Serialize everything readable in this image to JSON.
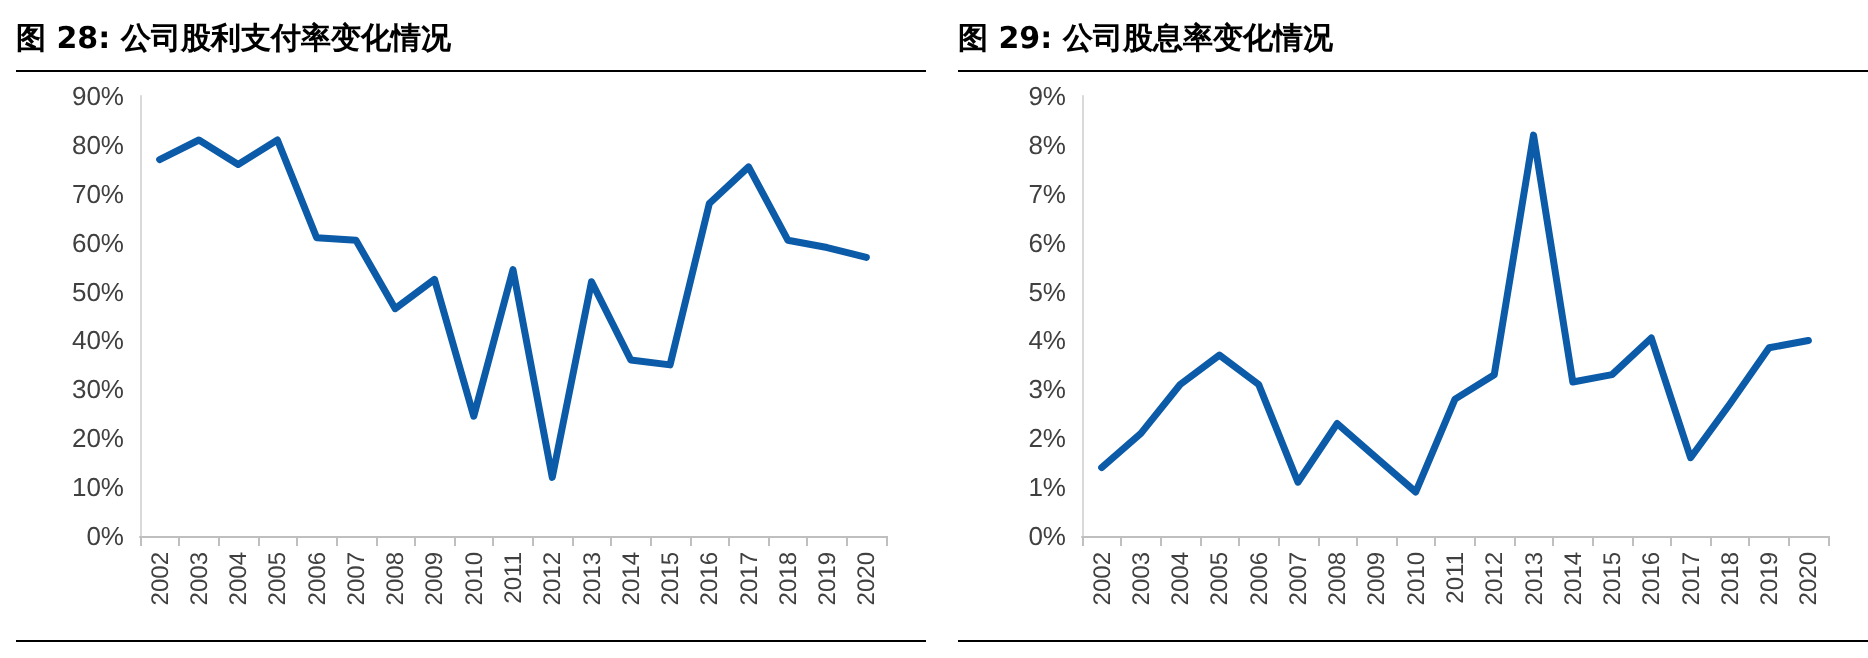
{
  "chart_data": [
    {
      "type": "line",
      "title": "图 28:  公司股利支付率变化情况",
      "categories": [
        "2002",
        "2003",
        "2004",
        "2005",
        "2006",
        "2007",
        "2008",
        "2009",
        "2010",
        "2011",
        "2012",
        "2013",
        "2014",
        "2015",
        "2016",
        "2017",
        "2018",
        "2019",
        "2020"
      ],
      "series": [
        {
          "color": "#0b5ba8",
          "values": [
            77,
            81,
            76,
            81,
            61,
            60.5,
            46.5,
            52.5,
            24.5,
            54.5,
            12,
            52,
            36,
            35,
            68,
            75.5,
            60.5,
            59,
            57
          ]
        }
      ],
      "ylim": [
        0,
        90
      ],
      "yticks": [
        {
          "value": 0,
          "label": "0%"
        },
        {
          "value": 10,
          "label": "10%"
        },
        {
          "value": 20,
          "label": "20%"
        },
        {
          "value": 30,
          "label": "30%"
        },
        {
          "value": 40,
          "label": "40%"
        },
        {
          "value": 50,
          "label": "50%"
        },
        {
          "value": 60,
          "label": "60%"
        },
        {
          "value": 70,
          "label": "70%"
        },
        {
          "value": 80,
          "label": "80%"
        },
        {
          "value": 90,
          "label": "90%"
        }
      ],
      "grid": false,
      "marker": "none",
      "line_style": "solid"
    },
    {
      "type": "line",
      "title": "图 29:  公司股息率变化情况",
      "categories": [
        "2002",
        "2003",
        "2004",
        "2005",
        "2006",
        "2007",
        "2008",
        "2009",
        "2010",
        "2011",
        "2012",
        "2013",
        "2014",
        "2015",
        "2016",
        "2017",
        "2018",
        "2019",
        "2020"
      ],
      "series": [
        {
          "color": "#0b5ba8",
          "values": [
            1.4,
            2.1,
            3.1,
            3.7,
            3.1,
            1.1,
            2.3,
            1.6,
            0.9,
            2.8,
            3.3,
            8.2,
            3.15,
            3.3,
            4.05,
            1.6,
            2.7,
            3.85,
            4.0
          ]
        }
      ],
      "ylim": [
        0,
        9
      ],
      "yticks": [
        {
          "value": 0,
          "label": "0%"
        },
        {
          "value": 1,
          "label": "1%"
        },
        {
          "value": 2,
          "label": "2%"
        },
        {
          "value": 3,
          "label": "3%"
        },
        {
          "value": 4,
          "label": "4%"
        },
        {
          "value": 5,
          "label": "5%"
        },
        {
          "value": 6,
          "label": "6%"
        },
        {
          "value": 7,
          "label": "7%"
        },
        {
          "value": 8,
          "label": "8%"
        },
        {
          "value": 9,
          "label": "9%"
        }
      ],
      "grid": false,
      "marker": "none",
      "line_style": "solid"
    }
  ]
}
